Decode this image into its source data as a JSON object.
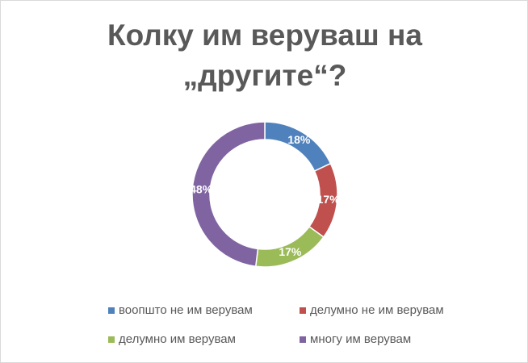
{
  "chart_data": {
    "type": "donut",
    "title": "Колку им веруваш на „другите“?",
    "categories": [
      "воопшто не им верувам",
      "делумно не им верувам",
      "делумно им верувам",
      "многу им верувам"
    ],
    "values": [
      18,
      17,
      17,
      48
    ],
    "value_labels": [
      "18%",
      "17%",
      "17%",
      "48%"
    ],
    "colors": [
      "#4f81bd",
      "#c0504d",
      "#9bbb59",
      "#8064a2"
    ]
  }
}
